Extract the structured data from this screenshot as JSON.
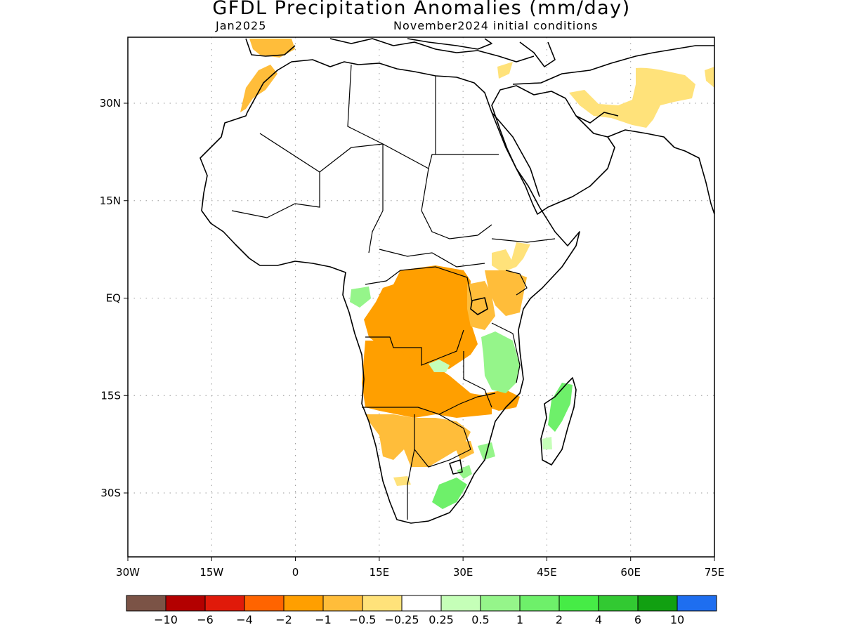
{
  "title": "GFDL Precipitation Anomalies (mm/day)",
  "subtitle_left": "Jan2025",
  "subtitle_right": "November2024 initial conditions",
  "y_ticks": [
    {
      "label": "30N",
      "lat": 30
    },
    {
      "label": "15N",
      "lat": 15
    },
    {
      "label": "EQ",
      "lat": 0
    },
    {
      "label": "15S",
      "lat": -15
    },
    {
      "label": "30S",
      "lat": -30
    }
  ],
  "x_ticks": [
    {
      "label": "30W",
      "lon": -30
    },
    {
      "label": "15W",
      "lon": -15
    },
    {
      "label": "0",
      "lon": 0
    },
    {
      "label": "15E",
      "lon": 15
    },
    {
      "label": "30E",
      "lon": 30
    },
    {
      "label": "45E",
      "lon": 45
    },
    {
      "label": "60E",
      "lon": 60
    },
    {
      "label": "75E",
      "lon": 75
    }
  ],
  "lon_range": [
    -30,
    75
  ],
  "lat_range": [
    -40,
    40
  ],
  "colorbar": {
    "colors": [
      "#7b5346",
      "#b30000",
      "#e01a0a",
      "#ff6400",
      "#ff9f00",
      "#ffbd3a",
      "#ffe27a",
      "#ffffff",
      "#c5ffb8",
      "#95f58a",
      "#6ef06a",
      "#46ec46",
      "#32c932",
      "#11a011",
      "#1e6ef0"
    ],
    "labels": [
      "−10",
      "−6",
      "−4",
      "−2",
      "−1",
      "−0.5",
      "−0.25",
      "0.25",
      "0.5",
      "1",
      "2",
      "4",
      "6",
      "10"
    ]
  },
  "land_color": "#ffffff",
  "coast_color": "#000000"
}
